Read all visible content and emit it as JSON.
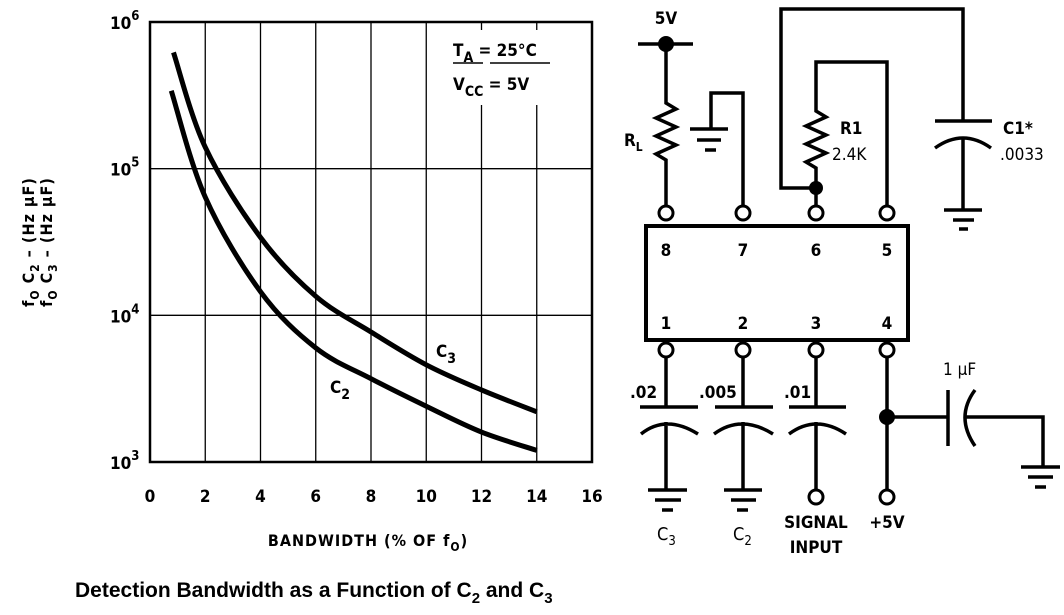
{
  "chart_data": {
    "type": "line",
    "title": "Detection Bandwidth as a Function of C2 and C3",
    "caption": {
      "main": "Detection Bandwidth as a Function of C",
      "sub1": "2",
      "and": " and C",
      "sub2": "3"
    },
    "xlabel": {
      "main": "BANDWIDTH (% OF f",
      "sub": "O",
      "end": ")"
    },
    "ylabel": [
      {
        "f": "f",
        "fsub": "O",
        "c": " C",
        "csub": "2",
        "rest": " – (Hz µF)"
      },
      {
        "f": "f",
        "fsub": "O",
        "c": " C",
        "csub": "3",
        "rest": " – (Hz µF)"
      }
    ],
    "xlim": [
      0,
      16
    ],
    "ylim": [
      1000,
      1000000
    ],
    "yscale": "log",
    "grid": true,
    "x_ticks": [
      "0",
      "2",
      "4",
      "6",
      "8",
      "10",
      "12",
      "16"
    ],
    "x_tick_values": [
      0,
      2,
      4,
      6,
      8,
      10,
      12,
      16
    ],
    "x_tick_14": "14",
    "y_ticks": [
      {
        "base": "10",
        "exp": "3"
      },
      {
        "base": "10",
        "exp": "4"
      },
      {
        "base": "10",
        "exp": "5"
      },
      {
        "base": "10",
        "exp": "6"
      }
    ],
    "annotation": {
      "ta": "T",
      "ta_sub": "A",
      "ta_val": " = 25°C",
      "vcc": "V",
      "vcc_sub": "CC",
      "vcc_val": " = 5V"
    },
    "series": [
      {
        "name": "C3",
        "label": "C",
        "label_sub": "3",
        "x": [
          0.85,
          2,
          4,
          6,
          8,
          10,
          12,
          14
        ],
        "y": [
          620000,
          140000,
          34000,
          13500,
          7700,
          4600,
          3100,
          2200
        ]
      },
      {
        "name": "C2",
        "label": "C",
        "label_sub": "2",
        "x": [
          0.77,
          2,
          4,
          6,
          8,
          10,
          12,
          14
        ],
        "y": [
          340000,
          64000,
          14500,
          6000,
          3700,
          2400,
          1600,
          1200
        ]
      }
    ]
  },
  "circuit": {
    "supply_top": "5V",
    "rl": "R",
    "rl_sub": "L",
    "r1": "R1",
    "r1_val": "2.4K",
    "c1": "C1*",
    "c1_val": ".0033",
    "pins_top": [
      "8",
      "7",
      "6",
      "5"
    ],
    "pins_bottom": [
      "1",
      "2",
      "3",
      "4"
    ],
    "cap_c3": ".02",
    "cap_c2": ".005",
    "cap_in": ".01",
    "c3_label": "C",
    "c3_sub": "3",
    "c2_label": "C",
    "c2_sub": "2",
    "signal": "SIGNAL",
    "input": "INPUT",
    "plus5v": "+5V",
    "cap_1uf": "1 µF"
  }
}
